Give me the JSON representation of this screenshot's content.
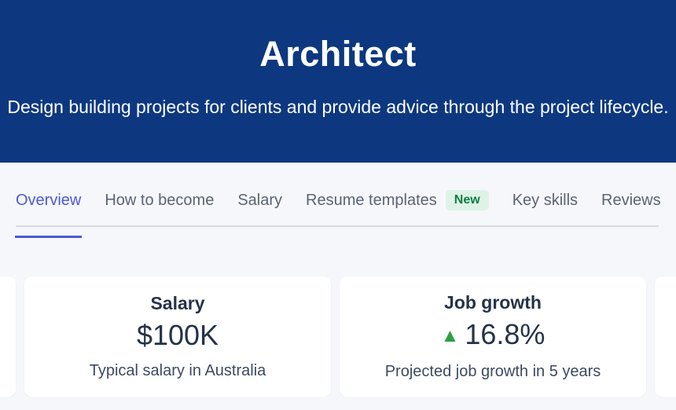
{
  "colors": {
    "header_bg": "#0d3880",
    "page_bg": "#f6f7fa",
    "active_tab": "#4a5ad4",
    "inactive_tab": "#5a6474",
    "badge_bg": "#def3e6",
    "badge_text": "#0f7b45",
    "trend_up_green": "#2f9e44",
    "card_text": "#253349"
  },
  "header": {
    "title": "Architect",
    "subtitle": "Design building projects for clients and provide advice through the project lifecycle."
  },
  "tabs": {
    "items": [
      {
        "label": "Overview",
        "active": true
      },
      {
        "label": "How to become",
        "active": false
      },
      {
        "label": "Salary",
        "active": false
      },
      {
        "label": "Resume templates",
        "active": false,
        "badge": "New"
      },
      {
        "label": "Key skills",
        "active": false
      },
      {
        "label": "Reviews",
        "active": false
      }
    ]
  },
  "cards": [
    {
      "title": "Salary",
      "value": "$100K",
      "caption": "Typical salary in Australia"
    },
    {
      "title": "Job growth",
      "trend_icon": "▲",
      "value": "16.8%",
      "caption": "Projected job growth in 5 years"
    }
  ]
}
